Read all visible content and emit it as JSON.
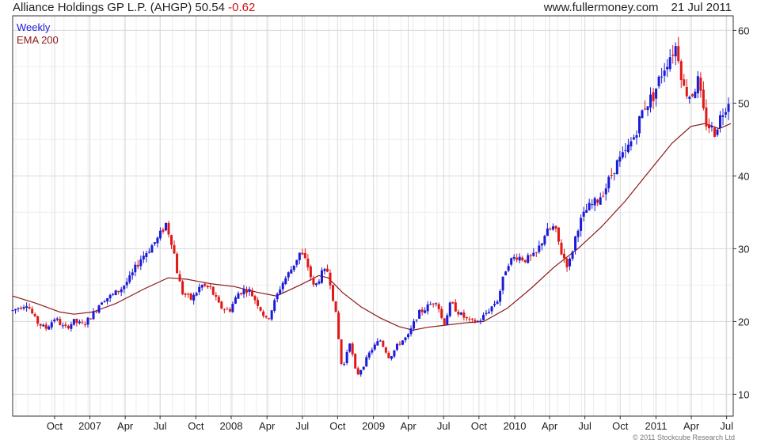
{
  "header": {
    "title": "Alliance Holdings GP L.P. (AHGP)",
    "last": "50.54",
    "change": "-0.62",
    "site": "www.fullermoney.com",
    "date": "21 Jul 2011"
  },
  "copyright": "© 2011 Stockcube Research Ltd",
  "colors": {
    "up": "#1a1ad8",
    "down": "#e01818",
    "ema": "#8b1a1a",
    "grid": "#d8d8d8",
    "axis": "#333333"
  },
  "chart_data": {
    "type": "candlestick",
    "period": "Weekly",
    "legend": [
      {
        "name": "Weekly",
        "color": "#1a1ad8"
      },
      {
        "name": "EMA 200",
        "color": "#8b1a1a"
      }
    ],
    "legend_position": "top-left",
    "ylim": [
      7,
      62
    ],
    "y_ticks": [
      10,
      20,
      30,
      40,
      50,
      60
    ],
    "x_ticks": [
      {
        "label": "Oct",
        "x": 0.089
      },
      {
        "label": "2007",
        "x": 0.164
      },
      {
        "label": "Apr",
        "x": 0.239
      },
      {
        "label": "Jul",
        "x": 0.313
      },
      {
        "label": "Oct",
        "x": 0.389
      },
      {
        "label": "2008",
        "x": 0.464
      },
      {
        "label": "Apr",
        "x": 0.54
      },
      {
        "label": "Jul",
        "x": 0.615
      },
      {
        "label": "Oct",
        "x": 0.69
      },
      {
        "label": "2009",
        "x": 0.766
      },
      {
        "label": "Apr",
        "x": 0.84
      },
      {
        "label": "Jul",
        "x": 0.915
      },
      {
        "label": "Oct",
        "x": 0.99
      },
      {
        "label": "2010",
        "x": 1.066
      },
      {
        "label": "Apr",
        "x": 1.14
      },
      {
        "label": "Jul",
        "x": 1.215
      },
      {
        "label": "Oct",
        "x": 1.29
      },
      {
        "label": "2011",
        "x": 1.366
      },
      {
        "label": "Apr",
        "x": 1.441
      },
      {
        "label": "Jul",
        "x": 1.516
      }
    ],
    "grid": true,
    "price_path": [
      [
        0.0,
        21.5
      ],
      [
        0.03,
        22.5
      ],
      [
        0.05,
        20.0
      ],
      [
        0.07,
        19.0
      ],
      [
        0.09,
        20.5
      ],
      [
        0.11,
        19.0
      ],
      [
        0.13,
        20.0
      ],
      [
        0.15,
        19.5
      ],
      [
        0.17,
        21.0
      ],
      [
        0.19,
        23.0
      ],
      [
        0.21,
        23.5
      ],
      [
        0.23,
        24.5
      ],
      [
        0.25,
        26.0
      ],
      [
        0.27,
        28.5
      ],
      [
        0.29,
        30.0
      ],
      [
        0.31,
        31.5
      ],
      [
        0.325,
        33.5
      ],
      [
        0.34,
        30.5
      ],
      [
        0.35,
        26.5
      ],
      [
        0.36,
        24.0
      ],
      [
        0.38,
        23.0
      ],
      [
        0.4,
        25.0
      ],
      [
        0.42,
        24.5
      ],
      [
        0.44,
        22.0
      ],
      [
        0.46,
        21.5
      ],
      [
        0.48,
        24.0
      ],
      [
        0.5,
        24.5
      ],
      [
        0.52,
        22.5
      ],
      [
        0.54,
        20.0
      ],
      [
        0.555,
        22.5
      ],
      [
        0.57,
        25.0
      ],
      [
        0.59,
        27.0
      ],
      [
        0.61,
        29.5
      ],
      [
        0.625,
        28.0
      ],
      [
        0.64,
        24.5
      ],
      [
        0.655,
        26.5
      ],
      [
        0.67,
        27.0
      ],
      [
        0.685,
        21.5
      ],
      [
        0.7,
        13.0
      ],
      [
        0.715,
        17.5
      ],
      [
        0.73,
        12.5
      ],
      [
        0.745,
        14.0
      ],
      [
        0.76,
        16.0
      ],
      [
        0.78,
        17.5
      ],
      [
        0.8,
        15.0
      ],
      [
        0.82,
        17.0
      ],
      [
        0.84,
        18.0
      ],
      [
        0.86,
        21.0
      ],
      [
        0.88,
        22.0
      ],
      [
        0.9,
        23.0
      ],
      [
        0.915,
        19.5
      ],
      [
        0.93,
        22.5
      ],
      [
        0.95,
        21.0
      ],
      [
        0.97,
        20.0
      ],
      [
        0.99,
        20.0
      ],
      [
        1.01,
        21.5
      ],
      [
        1.03,
        23.0
      ],
      [
        1.05,
        28.0
      ],
      [
        1.07,
        29.0
      ],
      [
        1.09,
        28.5
      ],
      [
        1.11,
        29.0
      ],
      [
        1.13,
        32.0
      ],
      [
        1.15,
        33.0
      ],
      [
        1.165,
        29.5
      ],
      [
        1.18,
        27.5
      ],
      [
        1.2,
        33.0
      ],
      [
        1.22,
        35.5
      ],
      [
        1.24,
        36.5
      ],
      [
        1.26,
        38.5
      ],
      [
        1.28,
        41.5
      ],
      [
        1.3,
        43.0
      ],
      [
        1.32,
        45.5
      ],
      [
        1.34,
        49.5
      ],
      [
        1.36,
        51.0
      ],
      [
        1.38,
        54.5
      ],
      [
        1.395,
        56.5
      ],
      [
        1.41,
        58.0
      ],
      [
        1.425,
        52.0
      ],
      [
        1.44,
        51.0
      ],
      [
        1.455,
        53.0
      ],
      [
        1.47,
        47.5
      ],
      [
        1.49,
        46.0
      ],
      [
        1.505,
        48.5
      ],
      [
        1.52,
        50.5
      ]
    ],
    "ema_200": [
      [
        0.0,
        23.5
      ],
      [
        0.05,
        22.5
      ],
      [
        0.1,
        21.3
      ],
      [
        0.13,
        21.0
      ],
      [
        0.17,
        21.3
      ],
      [
        0.22,
        22.5
      ],
      [
        0.28,
        24.5
      ],
      [
        0.33,
        26.0
      ],
      [
        0.37,
        25.8
      ],
      [
        0.42,
        25.2
      ],
      [
        0.47,
        24.8
      ],
      [
        0.52,
        24.0
      ],
      [
        0.56,
        23.5
      ],
      [
        0.61,
        25.0
      ],
      [
        0.65,
        26.3
      ],
      [
        0.67,
        26.0
      ],
      [
        0.7,
        24.0
      ],
      [
        0.74,
        22.0
      ],
      [
        0.78,
        20.5
      ],
      [
        0.82,
        19.3
      ],
      [
        0.85,
        18.8
      ],
      [
        0.88,
        19.2
      ],
      [
        0.92,
        19.5
      ],
      [
        0.96,
        19.8
      ],
      [
        1.0,
        20.0
      ],
      [
        1.05,
        21.8
      ],
      [
        1.1,
        24.5
      ],
      [
        1.15,
        27.5
      ],
      [
        1.2,
        30.0
      ],
      [
        1.25,
        33.0
      ],
      [
        1.3,
        36.5
      ],
      [
        1.35,
        40.5
      ],
      [
        1.4,
        44.5
      ],
      [
        1.44,
        46.8
      ],
      [
        1.47,
        47.2
      ],
      [
        1.5,
        46.5
      ],
      [
        1.525,
        47.2
      ]
    ]
  }
}
